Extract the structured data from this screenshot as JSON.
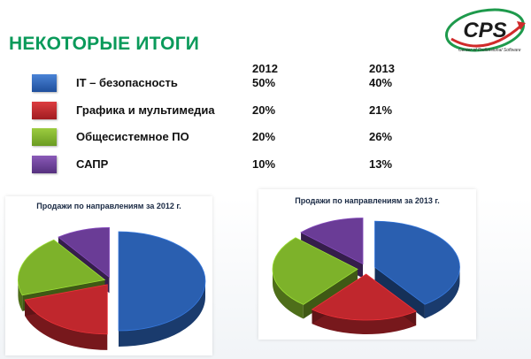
{
  "page": {
    "title": "НЕКОТОРЫЕ ИТОГИ"
  },
  "logo": {
    "text": "CPS",
    "subtitle": "Center of Professional Software"
  },
  "table": {
    "columns": [
      "2012",
      "2013"
    ],
    "rows": [
      {
        "label": "IT – безопасность",
        "v2012": "50%",
        "v2013": "40%",
        "color": "#2a5fb0"
      },
      {
        "label": "Графика и мультимедиа",
        "v2012": "20%",
        "v2013": "21%",
        "color": "#c0272d"
      },
      {
        "label": "Общесистемное ПО",
        "v2012": "20%",
        "v2013": "26%",
        "color": "#7db22a"
      },
      {
        "label": "САПР",
        "v2012": "10%",
        "v2013": "13%",
        "color": "#6a3c96"
      }
    ]
  },
  "chart_data": [
    {
      "type": "pie",
      "title": "Продажи по направлениям  за 2012 г.",
      "categories": [
        "IT – безопасность",
        "Графика и мультимедиа",
        "Общесистемное ПО",
        "САПР"
      ],
      "values": [
        50,
        20,
        20,
        10
      ],
      "colors": [
        "#2a5fb0",
        "#c0272d",
        "#7db22a",
        "#6a3c96"
      ],
      "exploded": true,
      "three_d": true
    },
    {
      "type": "pie",
      "title": "Продажи по направлениям  за  2013 г.",
      "categories": [
        "IT – безопасность",
        "Графика и мультимедиа",
        "Общесистемное ПО",
        "САПР"
      ],
      "values": [
        40,
        21,
        26,
        13
      ],
      "colors": [
        "#2a5fb0",
        "#c0272d",
        "#7db22a",
        "#6a3c96"
      ],
      "exploded": true,
      "three_d": true
    }
  ]
}
